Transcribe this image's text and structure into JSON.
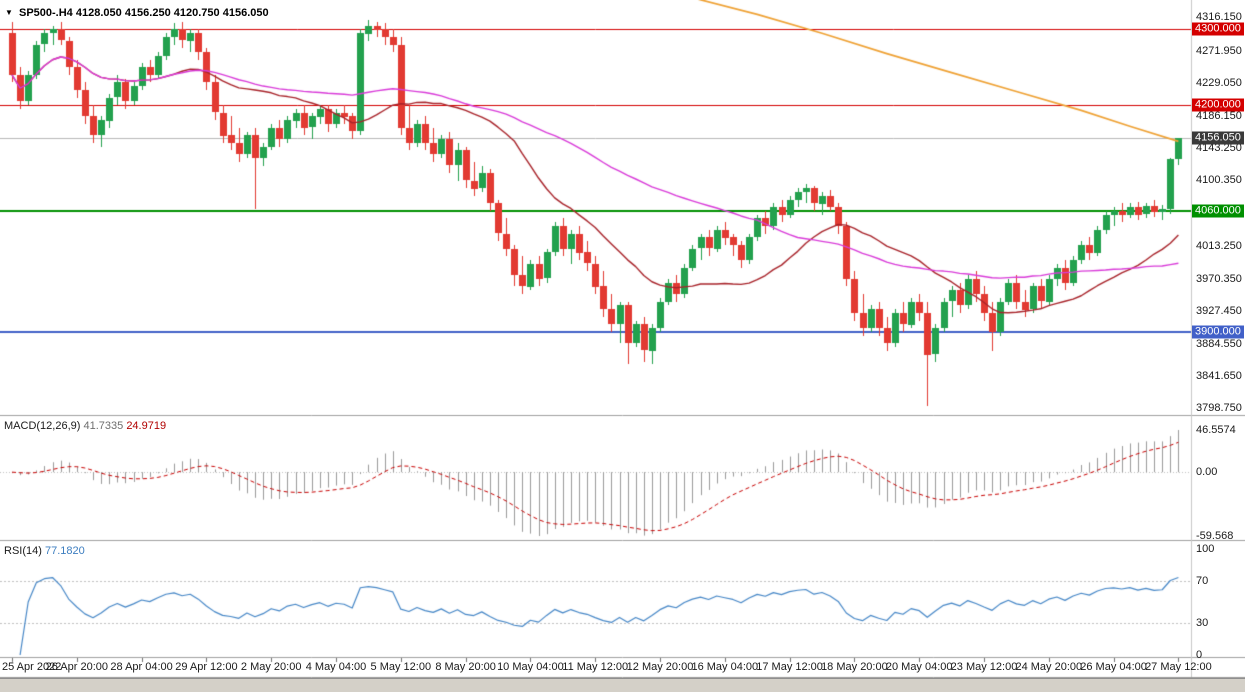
{
  "header": {
    "symbol_period": "SP500-.H4",
    "open": "4128.050",
    "high": "4156.250",
    "low": "4120.750",
    "close": "4156.050"
  },
  "indicators": {
    "macd": {
      "name": "MACD(12,26,9)",
      "main_value": "41.7335",
      "signal_value": "24.9719"
    },
    "rsi": {
      "name": "RSI(14)",
      "value": "77.1820"
    }
  },
  "colors": {
    "background": "#FFFFFF",
    "bull": "#23A14E",
    "bear": "#E23A32",
    "ma_fast": "#A8232A",
    "ma_slow": "#D93BD9",
    "ma_long": "#EFA235",
    "line_red": "#D40000",
    "line_green": "#009000",
    "line_blue": "#4160C8",
    "bid_line": "#B8B8B8",
    "bid_badge": "#3A3A3A",
    "macd_hist": "#9A9A9A",
    "macd_signal": "#C80000",
    "rsi_line": "#4687C7",
    "axis_text": "#1A1A1A",
    "divider": "#A0A0A0",
    "bottom_bar": "#D4D0C8",
    "grid_dotted": "#C0C0C0"
  },
  "chart_data": {
    "type": "candlestick",
    "title": "SP500- H4 with MACD(12,26,9) and RSI(14)",
    "symbol": "SP500-",
    "timeframe": "H4",
    "price_axis": {
      "range": [
        3790,
        4339
      ],
      "labels": [
        "4316.150",
        "4271.950",
        "4229.050",
        "4186.150",
        "4143.250",
        "4100.350",
        "4013.250",
        "3970.350",
        "3927.450",
        "3884.550",
        "3841.650",
        "3798.750"
      ]
    },
    "price_lines": [
      {
        "price": 4300.0,
        "label": "4300.000",
        "color": "#D40000",
        "width": 1
      },
      {
        "price": 4200.0,
        "label": "4200.000",
        "color": "#D40000",
        "width": 1
      },
      {
        "price": 4060.0,
        "label": "4060.000",
        "color": "#009000",
        "width": 2
      },
      {
        "price": 3900.0,
        "label": "3900.000",
        "color": "#4160C8",
        "width": 2
      }
    ],
    "bid_line": {
      "price": 4156.05,
      "label": "4156.050",
      "color": "#B8B8B8",
      "badge_color": "#3A3A3A"
    },
    "moving_averages": [
      {
        "name": "fast-ma",
        "period": 20,
        "method": "sma",
        "color": "#A8232A"
      },
      {
        "name": "slow-ma",
        "period": 50,
        "method": "sma",
        "color": "#D93BD9"
      }
    ],
    "long_ma_overlay": {
      "color": "#EFA235",
      "points": [
        [
          84,
          4342
        ],
        [
          92,
          4320
        ],
        [
          100,
          4295
        ],
        [
          108,
          4268
        ],
        [
          116,
          4243
        ],
        [
          124,
          4218
        ],
        [
          132,
          4193
        ],
        [
          138,
          4172
        ],
        [
          144,
          4152
        ]
      ]
    },
    "candles_ohlc": [
      [
        4295,
        4310,
        4230,
        4240
      ],
      [
        4240,
        4250,
        4195,
        4205
      ],
      [
        4205,
        4245,
        4200,
        4240
      ],
      [
        4240,
        4285,
        4235,
        4280
      ],
      [
        4280,
        4300,
        4270,
        4295
      ],
      [
        4295,
        4305,
        4280,
        4300
      ],
      [
        4300,
        4310,
        4280,
        4285
      ],
      [
        4285,
        4290,
        4240,
        4250
      ],
      [
        4250,
        4260,
        4210,
        4220
      ],
      [
        4220,
        4230,
        4175,
        4185
      ],
      [
        4185,
        4200,
        4150,
        4160
      ],
      [
        4160,
        4185,
        4145,
        4180
      ],
      [
        4180,
        4215,
        4170,
        4210
      ],
      [
        4210,
        4240,
        4200,
        4230
      ],
      [
        4230,
        4235,
        4195,
        4205
      ],
      [
        4205,
        4230,
        4200,
        4225
      ],
      [
        4225,
        4255,
        4220,
        4250
      ],
      [
        4250,
        4260,
        4230,
        4240
      ],
      [
        4240,
        4270,
        4235,
        4265
      ],
      [
        4265,
        4295,
        4260,
        4290
      ],
      [
        4290,
        4308,
        4280,
        4300
      ],
      [
        4300,
        4310,
        4275,
        4285
      ],
      [
        4285,
        4300,
        4270,
        4295
      ],
      [
        4295,
        4300,
        4260,
        4270
      ],
      [
        4270,
        4275,
        4220,
        4230
      ],
      [
        4230,
        4240,
        4180,
        4190
      ],
      [
        4190,
        4200,
        4150,
        4160
      ],
      [
        4160,
        4185,
        4140,
        4150
      ],
      [
        4150,
        4170,
        4125,
        4135
      ],
      [
        4135,
        4165,
        4130,
        4160
      ],
      [
        4160,
        4170,
        4062,
        4130
      ],
      [
        4130,
        4150,
        4120,
        4145
      ],
      [
        4145,
        4175,
        4140,
        4170
      ],
      [
        4170,
        4180,
        4145,
        4155
      ],
      [
        4155,
        4185,
        4150,
        4180
      ],
      [
        4180,
        4195,
        4170,
        4190
      ],
      [
        4190,
        4200,
        4160,
        4170
      ],
      [
        4170,
        4190,
        4155,
        4185
      ],
      [
        4185,
        4200,
        4175,
        4195
      ],
      [
        4195,
        4200,
        4165,
        4175
      ],
      [
        4175,
        4195,
        4170,
        4190
      ],
      [
        4190,
        4200,
        4175,
        4185
      ],
      [
        4185,
        4190,
        4155,
        4165
      ],
      [
        4165,
        4300,
        4160,
        4295
      ],
      [
        4295,
        4312,
        4285,
        4305
      ],
      [
        4305,
        4310,
        4290,
        4300
      ],
      [
        4300,
        4308,
        4280,
        4290
      ],
      [
        4290,
        4300,
        4270,
        4280
      ],
      [
        4280,
        4290,
        4160,
        4170
      ],
      [
        4170,
        4200,
        4140,
        4150
      ],
      [
        4150,
        4180,
        4145,
        4175
      ],
      [
        4175,
        4185,
        4140,
        4150
      ],
      [
        4150,
        4170,
        4125,
        4135
      ],
      [
        4135,
        4160,
        4130,
        4155
      ],
      [
        4155,
        4165,
        4110,
        4120
      ],
      [
        4120,
        4150,
        4100,
        4140
      ],
      [
        4140,
        4145,
        4090,
        4100
      ],
      [
        4100,
        4125,
        4080,
        4090
      ],
      [
        4090,
        4120,
        4085,
        4110
      ],
      [
        4110,
        4115,
        4060,
        4070
      ],
      [
        4070,
        4075,
        4020,
        4030
      ],
      [
        4030,
        4050,
        4000,
        4010
      ],
      [
        4010,
        4015,
        3960,
        3975
      ],
      [
        3975,
        4000,
        3950,
        3960
      ],
      [
        3960,
        3995,
        3955,
        3990
      ],
      [
        3990,
        4000,
        3960,
        3970
      ],
      [
        3970,
        4010,
        3965,
        4005
      ],
      [
        4005,
        4045,
        4000,
        4040
      ],
      [
        4040,
        4050,
        4000,
        4010
      ],
      [
        4010,
        4035,
        3990,
        4030
      ],
      [
        4030,
        4040,
        3995,
        4005
      ],
      [
        4005,
        4020,
        3980,
        3990
      ],
      [
        3990,
        4000,
        3950,
        3960
      ],
      [
        3960,
        3980,
        3920,
        3930
      ],
      [
        3930,
        3950,
        3900,
        3910
      ],
      [
        3910,
        3940,
        3885,
        3935
      ],
      [
        3935,
        3940,
        3858,
        3885
      ],
      [
        3885,
        3915,
        3880,
        3910
      ],
      [
        3910,
        3920,
        3860,
        3875
      ],
      [
        3875,
        3910,
        3858,
        3905
      ],
      [
        3905,
        3945,
        3900,
        3940
      ],
      [
        3940,
        3970,
        3935,
        3965
      ],
      [
        3965,
        3975,
        3940,
        3950
      ],
      [
        3950,
        3990,
        3945,
        3985
      ],
      [
        3985,
        4015,
        3980,
        4010
      ],
      [
        4010,
        4030,
        3995,
        4025
      ],
      [
        4025,
        4035,
        4000,
        4010
      ],
      [
        4010,
        4040,
        4005,
        4035
      ],
      [
        4035,
        4045,
        4015,
        4025
      ],
      [
        4025,
        4030,
        4000,
        4015
      ],
      [
        4015,
        4020,
        3985,
        3995
      ],
      [
        3995,
        4030,
        3990,
        4025
      ],
      [
        4025,
        4055,
        4020,
        4050
      ],
      [
        4050,
        4060,
        4030,
        4040
      ],
      [
        4040,
        4070,
        4035,
        4065
      ],
      [
        4065,
        4075,
        4045,
        4055
      ],
      [
        4055,
        4080,
        4050,
        4075
      ],
      [
        4075,
        4090,
        4065,
        4085
      ],
      [
        4085,
        4095,
        4070,
        4090
      ],
      [
        4090,
        4093,
        4060,
        4070
      ],
      [
        4070,
        4085,
        4055,
        4080
      ],
      [
        4080,
        4088,
        4060,
        4065
      ],
      [
        4065,
        4070,
        4030,
        4040
      ],
      [
        4040,
        4045,
        3960,
        3970
      ],
      [
        3970,
        3980,
        3915,
        3925
      ],
      [
        3925,
        3950,
        3895,
        3905
      ],
      [
        3905,
        3935,
        3900,
        3930
      ],
      [
        3930,
        3940,
        3895,
        3905
      ],
      [
        3905,
        3920,
        3875,
        3885
      ],
      [
        3885,
        3930,
        3880,
        3925
      ],
      [
        3925,
        3940,
        3900,
        3910
      ],
      [
        3910,
        3945,
        3905,
        3940
      ],
      [
        3940,
        3950,
        3915,
        3925
      ],
      [
        3925,
        3940,
        3802,
        3870
      ],
      [
        3870,
        3910,
        3860,
        3905
      ],
      [
        3905,
        3945,
        3900,
        3940
      ],
      [
        3940,
        3960,
        3920,
        3955
      ],
      [
        3955,
        3965,
        3925,
        3935
      ],
      [
        3935,
        3975,
        3930,
        3970
      ],
      [
        3970,
        3980,
        3940,
        3950
      ],
      [
        3950,
        3960,
        3915,
        3925
      ],
      [
        3925,
        3940,
        3875,
        3900
      ],
      [
        3900,
        3945,
        3895,
        3940
      ],
      [
        3940,
        3970,
        3935,
        3965
      ],
      [
        3965,
        3975,
        3930,
        3940
      ],
      [
        3940,
        3955,
        3920,
        3930
      ],
      [
        3930,
        3965,
        3925,
        3960
      ],
      [
        3960,
        3970,
        3930,
        3940
      ],
      [
        3940,
        3975,
        3935,
        3970
      ],
      [
        3970,
        3990,
        3960,
        3985
      ],
      [
        3985,
        3995,
        3955,
        3965
      ],
      [
        3965,
        4000,
        3960,
        3995
      ],
      [
        3995,
        4020,
        3990,
        4015
      ],
      [
        4015,
        4025,
        3995,
        4005
      ],
      [
        4005,
        4040,
        4000,
        4035
      ],
      [
        4035,
        4060,
        4030,
        4055
      ],
      [
        4055,
        4065,
        4040,
        4060
      ],
      [
        4060,
        4070,
        4045,
        4055
      ],
      [
        4055,
        4070,
        4050,
        4065
      ],
      [
        4065,
        4072,
        4048,
        4055
      ],
      [
        4055,
        4070,
        4050,
        4066
      ],
      [
        4066,
        4074,
        4052,
        4058
      ],
      [
        4058,
        4068,
        4048,
        4062
      ],
      [
        4062,
        4130,
        4056,
        4128
      ],
      [
        4128.05,
        4156.25,
        4120.75,
        4156.05
      ]
    ],
    "x_axis": {
      "tick_step": 8,
      "labels": [
        {
          "i": 0,
          "t": "25 Apr 2022"
        },
        {
          "i": 8,
          "t": "26 Apr 20:00"
        },
        {
          "i": 16,
          "t": "28 Apr 04:00"
        },
        {
          "i": 24,
          "t": "29 Apr 12:00"
        },
        {
          "i": 32,
          "t": "2 May 20:00"
        },
        {
          "i": 40,
          "t": "4 May 04:00"
        },
        {
          "i": 48,
          "t": "5 May 12:00"
        },
        {
          "i": 56,
          "t": "8 May 20:00"
        },
        {
          "i": 64,
          "t": "10 May 04:00"
        },
        {
          "i": 72,
          "t": "11 May 12:00"
        },
        {
          "i": 80,
          "t": "12 May 20:00"
        },
        {
          "i": 88,
          "t": "16 May 04:00"
        },
        {
          "i": 96,
          "t": "17 May 12:00"
        },
        {
          "i": 104,
          "t": "18 May 20:00"
        },
        {
          "i": 112,
          "t": "20 May 04:00"
        },
        {
          "i": 120,
          "t": "23 May 12:00"
        },
        {
          "i": 128,
          "t": "24 May 20:00"
        },
        {
          "i": 136,
          "t": "26 May 04:00"
        },
        {
          "i": 144,
          "t": "27 May 12:00"
        }
      ]
    },
    "macd_panel": {
      "fast": 12,
      "slow": 26,
      "signal_period": 9,
      "axis_labels": {
        "top": "46.5574",
        "zero": "0.00",
        "bottom": "-59.568"
      },
      "hist_color": "#9A9A9A",
      "signal_color": "#C80000"
    },
    "rsi_panel": {
      "period": 14,
      "levels": [
        70,
        30
      ],
      "axis_labels": [
        "100",
        "70",
        "30",
        "0"
      ],
      "line_color": "#4687C7"
    }
  }
}
